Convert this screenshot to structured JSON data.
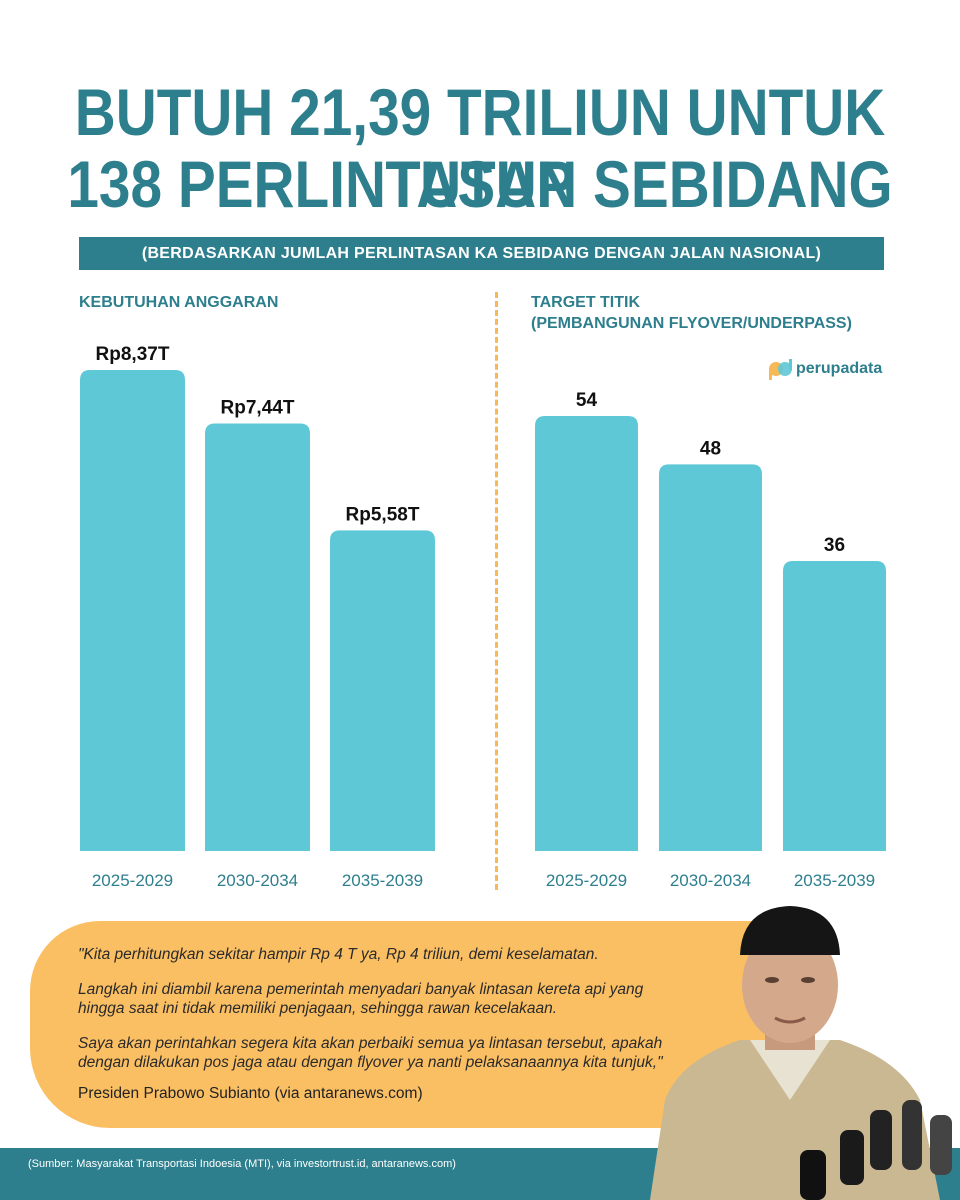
{
  "title": {
    "line1": "BUTUH 21,39 TRILIUN UNTUK TUTUP",
    "line2": "138 PERLINTASAN SEBIDANG"
  },
  "subtitle": "(BERDASARKAN JUMLAH PERLINTASAN KA SEBIDANG DENGAN JALAN NASIONAL)",
  "logo": {
    "text": "perupadata",
    "icon": "perupadata-logo-icon"
  },
  "colors": {
    "accent": "#2e7f8d",
    "bar": "#5fc8d6",
    "quote_bg": "#fbbf63",
    "divider": "#f7b955"
  },
  "chart_data": [
    {
      "type": "bar",
      "title": "KEBUTUHAN ANGGARAN",
      "categories": [
        "2025-2029",
        "2030-2034",
        "2035-2039"
      ],
      "values": [
        8.37,
        7.44,
        5.58
      ],
      "data_labels": [
        "Rp8,37T",
        "Rp7,44T",
        "Rp5,58T"
      ],
      "ylim": [
        0,
        8.37
      ]
    },
    {
      "type": "bar",
      "title_lines": [
        "TARGET TITIK",
        "(PEMBANGUNAN FLYOVER/UNDERPASS)"
      ],
      "categories": [
        "2025-2029",
        "2030-2034",
        "2035-2039"
      ],
      "values": [
        54,
        48,
        36
      ],
      "data_labels": [
        "54",
        "48",
        "36"
      ],
      "ylim": [
        0,
        54
      ]
    }
  ],
  "quote": {
    "p1": "\"Kita perhitungkan sekitar hampir Rp 4 T ya, Rp 4 triliun, demi keselamatan.",
    "p2a": "Langkah ini diambil karena pemerintah menyadari banyak lintasan kereta api yang",
    "p2b": "hingga saat ini tidak memiliki penjagaan, sehingga rawan kecelakaan.",
    "p3a": "Saya akan perintahkan segera kita akan perbaiki semua ya lintasan tersebut, apakah",
    "p3b": "dengan dilakukan pos jaga atau dengan flyover ya nanti pelaksanaannya kita tunjuk,\"",
    "attribution": "Presiden Prabowo Subianto (via antaranews.com)"
  },
  "source": "(Sumber: Masyarakat Transportasi Indoesia (MTI), via investortrust.id, antaranews.com)",
  "portrait_icon": "president-portrait-icon"
}
